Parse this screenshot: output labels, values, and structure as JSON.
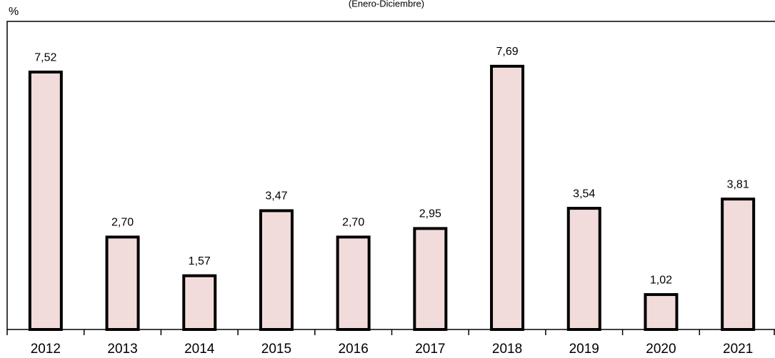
{
  "chart_data": {
    "type": "bar",
    "subtitle": "(Enero-Diciembre)",
    "y_label": "%",
    "categories": [
      "2012",
      "2013",
      "2014",
      "2015",
      "2016",
      "2017",
      "2018",
      "2019",
      "2020",
      "2021"
    ],
    "values": [
      7.52,
      2.7,
      1.57,
      3.47,
      2.7,
      2.95,
      7.69,
      3.54,
      1.02,
      3.81
    ],
    "value_labels": [
      "7,52",
      "2,70",
      "1,57",
      "3,47",
      "2,70",
      "2,95",
      "7,69",
      "3,54",
      "1,02",
      "3,81"
    ],
    "color": "#f2dcdb",
    "ylim": [
      0,
      9
    ]
  }
}
